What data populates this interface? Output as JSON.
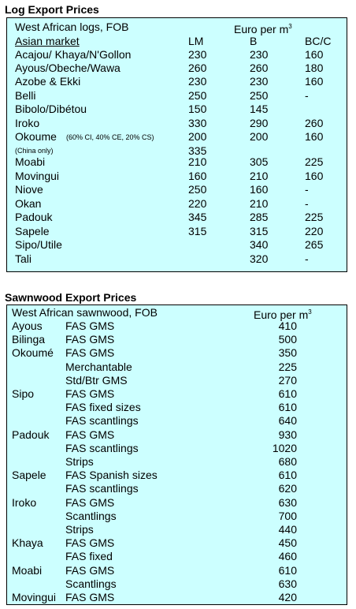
{
  "log": {
    "title": "Log Export Prices",
    "header": {
      "label": "West African logs, FOB",
      "unit": "Euro per m",
      "unit_sup": "3"
    },
    "subheader": {
      "label": "Asian market",
      "cols": [
        "LM",
        "B",
        "BC/C"
      ]
    },
    "rows": [
      {
        "name": "Acajou/ Khaya/N'Gollon",
        "note": "",
        "lm": "230",
        "b": "230",
        "bc": "160"
      },
      {
        "name": "Ayous/Obeche/Wawa",
        "note": "",
        "lm": "260",
        "b": "260",
        "bc": "180"
      },
      {
        "name": "Azobe & Ekki",
        "note": "",
        "lm": "230",
        "b": "230",
        "bc": "160"
      },
      {
        "name": "Belli",
        "note": "",
        "lm": "250",
        "b": "250",
        "bc": "-"
      },
      {
        "name": "Bibolo/Dibétou",
        "note": "",
        "lm": "150",
        "b": "145",
        "bc": ""
      },
      {
        "name": "Iroko",
        "note": "",
        "lm": "330",
        "b": "290",
        "bc": "260"
      },
      {
        "name": "Okoume",
        "note": "(60% CI, 40% CE, 20% CS)",
        "lm": "200",
        "b": "200",
        "bc": "160"
      },
      {
        "name": "",
        "note": "(China only)",
        "lm": "335",
        "b": "",
        "bc": ""
      },
      {
        "name": "Moabi",
        "note": "",
        "lm": "210",
        "b": "305",
        "bc": "225"
      },
      {
        "name": "Movingui",
        "note": "",
        "lm": "160",
        "b": "210",
        "bc": "160"
      },
      {
        "name": "Niove",
        "note": "",
        "lm": "250",
        "b": "160",
        "bc": "-"
      },
      {
        "name": "Okan",
        "note": "",
        "lm": "220",
        "b": "210",
        "bc": "-"
      },
      {
        "name": "Padouk",
        "note": "",
        "lm": "345",
        "b": "285",
        "bc": "225"
      },
      {
        "name": "Sapele",
        "note": "",
        "lm": "315",
        "b": "315",
        "bc": "220"
      },
      {
        "name": "Sipo/Utile",
        "note": "",
        "lm": "",
        "b": "340",
        "bc": "265"
      },
      {
        "name": "Tali",
        "note": "",
        "lm": "",
        "b": "320",
        "bc": "-"
      }
    ]
  },
  "sawn": {
    "title": "Sawnwood Export Prices",
    "header": {
      "label": "West African sawnwood, FOB",
      "unit": "Euro per m",
      "unit_sup": "3"
    },
    "rows": [
      {
        "species": "Ayous",
        "grade": "FAS GMS",
        "price": "410"
      },
      {
        "species": "Bilinga",
        "grade": "FAS GMS",
        "price": "500"
      },
      {
        "species": "Okoumé",
        "grade": "FAS GMS",
        "price": "350"
      },
      {
        "species": "",
        "grade": "Merchantable",
        "price": "225"
      },
      {
        "species": "",
        "grade": "Std/Btr GMS",
        "price": "270"
      },
      {
        "species": "Sipo",
        "grade": "FAS GMS",
        "price": "610"
      },
      {
        "species": "",
        "grade": "FAS fixed sizes",
        "price": "610"
      },
      {
        "species": "",
        "grade": "FAS scantlings",
        "price": "640"
      },
      {
        "species": "Padouk",
        "grade": "FAS GMS",
        "price": "930"
      },
      {
        "species": "",
        "grade": "FAS scantlings",
        "price": "1020"
      },
      {
        "species": "",
        "grade": "Strips",
        "price": "680"
      },
      {
        "species": "Sapele",
        "grade": "FAS Spanish sizes",
        "price": "610"
      },
      {
        "species": "",
        "grade": "FAS scantlings",
        "price": "620"
      },
      {
        "species": "Iroko",
        "grade": "FAS GMS",
        "price": "630"
      },
      {
        "species": "",
        "grade": "Scantlings",
        "price": "700"
      },
      {
        "species": "",
        "grade": "Strips",
        "price": "440"
      },
      {
        "species": "Khaya",
        "grade": "FAS GMS",
        "price": "450"
      },
      {
        "species": "",
        "grade": "FAS fixed",
        "price": "460"
      },
      {
        "species": "Moabi",
        "grade": "FAS GMS",
        "price": "610"
      },
      {
        "species": "",
        "grade": "Scantlings",
        "price": "630"
      },
      {
        "species": "Movingui",
        "grade": "FAS GMS",
        "price": "420"
      }
    ]
  }
}
